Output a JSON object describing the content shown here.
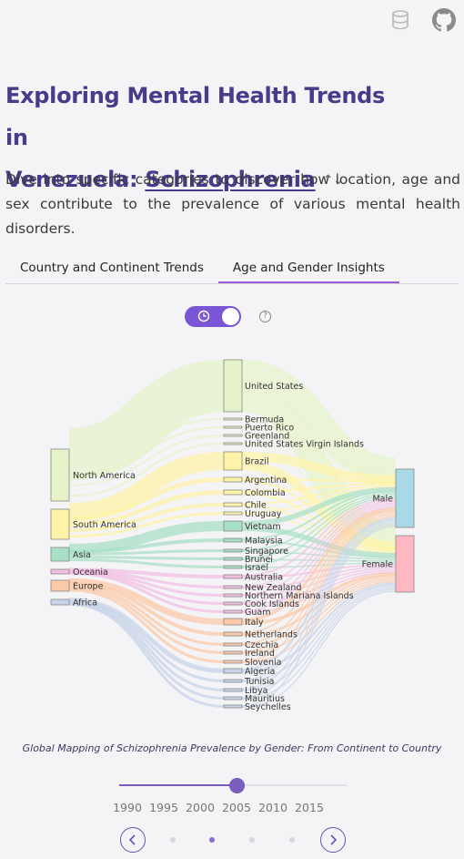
{
  "header_icons": [
    {
      "name": "database-icon"
    },
    {
      "name": "github-icon"
    }
  ],
  "title": {
    "prefix_line1": "Exploring Mental Health Trends in",
    "prefix_line2": "Venezuela: ",
    "disorder": "Schizophrenia"
  },
  "intro": "Dive into specific categories to discover how location, age and sex contribute to the prevalence of various mental health disorders.",
  "tabs": [
    {
      "label": "Country and Continent Trends",
      "active": false
    },
    {
      "label": "Age and Gender Insights",
      "active": true
    }
  ],
  "toggle": {
    "on": true,
    "icon": "clock-icon"
  },
  "help_label": "?",
  "sankey": {
    "continents": [
      {
        "name": "North America",
        "color": "#e6f3c9"
      },
      {
        "name": "South America",
        "color": "#fff3a8"
      },
      {
        "name": "Asia",
        "color": "#a8e0c6"
      },
      {
        "name": "Oceania",
        "color": "#f2bfe3"
      },
      {
        "name": "Europe",
        "color": "#fcc9a8"
      },
      {
        "name": "Africa",
        "color": "#c8d4ea"
      }
    ],
    "countries": [
      "United States",
      "Bermuda",
      "Puerto Rico",
      "Greenland",
      "United States Virgin Islands",
      "Brazil",
      "Argentina",
      "Colombia",
      "Chile",
      "Uruguay",
      "Vietnam",
      "Malaysia",
      "Singapore",
      "Brunei",
      "Israel",
      "Australia",
      "New Zealand",
      "Northern Mariana Islands",
      "Cook Islands",
      "Guam",
      "Italy",
      "Netherlands",
      "Czechia",
      "Ireland",
      "Slovenia",
      "Algeria",
      "Tunisia",
      "Libya",
      "Mauritius",
      "Seychelles"
    ],
    "genders": [
      {
        "name": "Male",
        "color": "#a9d8e6"
      },
      {
        "name": "Female",
        "color": "#ffb7c2"
      }
    ]
  },
  "caption": "Global Mapping of Schizophrenia Prevalence by Gender: From Continent to Country",
  "slider": {
    "selected_year": 2005,
    "min": 1990,
    "max": 2019
  },
  "year_ticks": [
    "1990",
    "1995",
    "2000",
    "2005",
    "2010",
    "2015"
  ],
  "pager": {
    "pages": 4,
    "current": 2
  }
}
